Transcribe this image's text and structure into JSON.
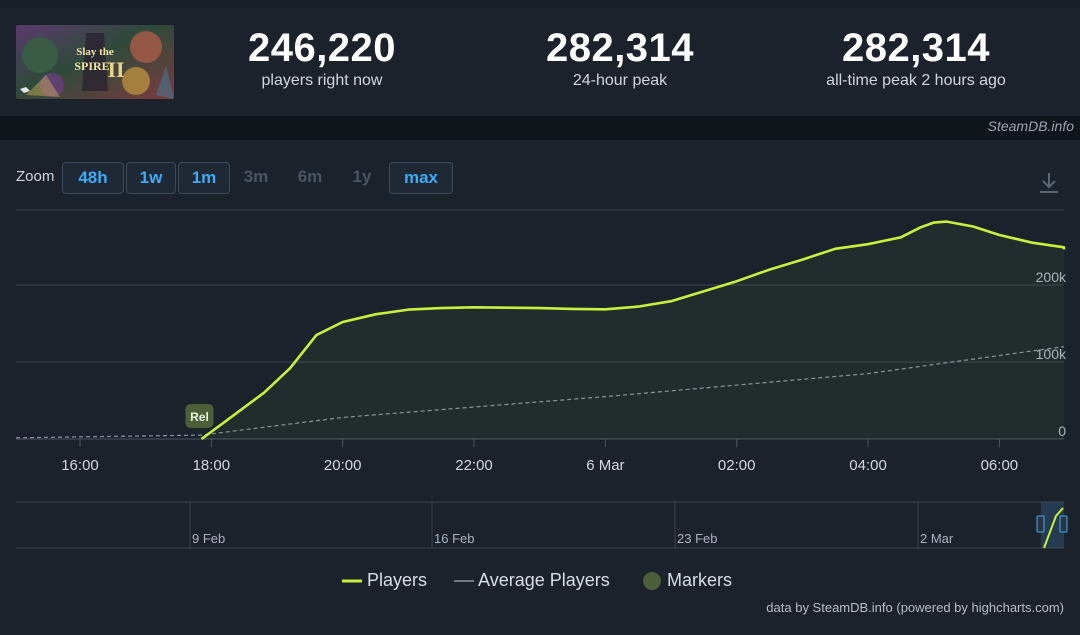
{
  "game": {
    "logo_text_top": "Slay the",
    "logo_text_bottom": "SPIRE",
    "logo_numeral": "II"
  },
  "stats": [
    {
      "value": "246,220",
      "label": "players right now"
    },
    {
      "value": "282,314",
      "label": "24-hour peak"
    },
    {
      "value": "282,314",
      "label": "all-time peak 2 hours ago"
    }
  ],
  "watermark": "SteamDB.info",
  "zoom": {
    "label": "Zoom",
    "options": [
      {
        "label": "48h",
        "enabled": true
      },
      {
        "label": "1w",
        "enabled": true
      },
      {
        "label": "1m",
        "enabled": true
      },
      {
        "label": "3m",
        "enabled": false
      },
      {
        "label": "6m",
        "enabled": false
      },
      {
        "label": "1y",
        "enabled": false
      },
      {
        "label": "max",
        "enabled": true
      }
    ]
  },
  "chart_data": {
    "type": "line",
    "x_ticks": [
      "16:00",
      "18:00",
      "20:00",
      "22:00",
      "6 Mar",
      "02:00",
      "04:00",
      "06:00"
    ],
    "y_ticks": [
      "0",
      "100k",
      "200k"
    ],
    "ylim": [
      0,
      300000
    ],
    "marker": {
      "label": "Rel",
      "at_hour": 17.85
    },
    "series": [
      {
        "name": "Players",
        "color": "#c8f03c",
        "points": [
          [
            17.85,
            0
          ],
          [
            18.2,
            22000
          ],
          [
            18.8,
            60000
          ],
          [
            19.2,
            92000
          ],
          [
            19.6,
            135000
          ],
          [
            20.0,
            152000
          ],
          [
            20.5,
            162000
          ],
          [
            21.0,
            168000
          ],
          [
            21.5,
            170000
          ],
          [
            22.0,
            171000
          ],
          [
            22.5,
            170500
          ],
          [
            23.0,
            170000
          ],
          [
            23.5,
            169000
          ],
          [
            24.0,
            168500
          ],
          [
            24.5,
            172000
          ],
          [
            25.0,
            179000
          ],
          [
            25.5,
            192000
          ],
          [
            26.0,
            205000
          ],
          [
            26.5,
            220000
          ],
          [
            27.0,
            233000
          ],
          [
            27.5,
            247000
          ],
          [
            28.0,
            253000
          ],
          [
            28.5,
            262000
          ],
          [
            28.8,
            275000
          ],
          [
            29.0,
            281000
          ],
          [
            29.2,
            282314
          ],
          [
            29.6,
            276000
          ],
          [
            30.0,
            265000
          ],
          [
            30.5,
            255000
          ],
          [
            31.0,
            249000
          ],
          [
            31.5,
            246220
          ]
        ]
      },
      {
        "name": "Average Players",
        "color": "#8a949f",
        "points": [
          [
            15.0,
            1500
          ],
          [
            17.85,
            5000
          ],
          [
            20.0,
            28000
          ],
          [
            24.0,
            55000
          ],
          [
            28.0,
            85000
          ],
          [
            31.5,
            120000
          ]
        ]
      }
    ],
    "legend": [
      {
        "name": "Players",
        "color": "#c8f03c"
      },
      {
        "name": "Average Players",
        "color": "#8a949f"
      },
      {
        "name": "Markers",
        "color": "#4d5e3a"
      }
    ]
  },
  "navigator": {
    "labels": [
      "9 Feb",
      "16 Feb",
      "23 Feb",
      "2 Mar"
    ]
  },
  "credit": "data by SteamDB.info (powered by highcharts.com)"
}
